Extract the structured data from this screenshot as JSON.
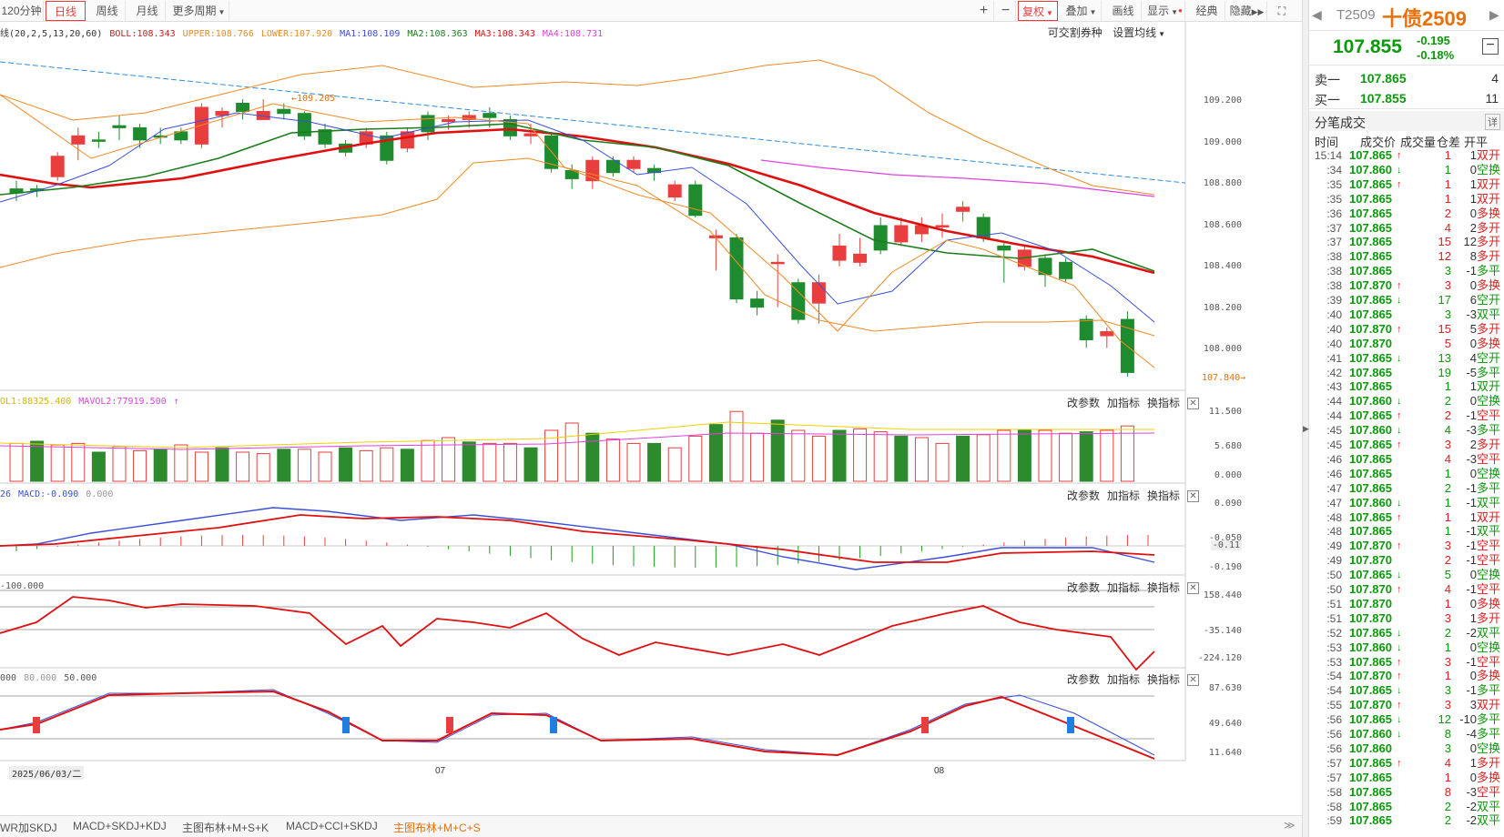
{
  "toolbar": {
    "periods": [
      "120分钟",
      "日线",
      "周线",
      "月线",
      "更多周期"
    ],
    "active_period": "日线",
    "right_buttons": [
      "+",
      "−",
      "复权",
      "叠加",
      "画线",
      "显示",
      "经典",
      "隐藏"
    ],
    "active_right": "复权"
  },
  "main_legend": {
    "prefix": "线(20,2,5,13,20,60)",
    "boll": "BOLL:108.343",
    "upper": "UPPER:108.766",
    "lower": "LOWER:107.920",
    "ma1": "MA1:108.109",
    "ma2": "MA2:108.363",
    "ma3": "MA3:108.343",
    "ma4": "MA4:108.731",
    "tool1": "可交割券种",
    "tool2": "设置均线"
  },
  "main_axis": [
    "109.200",
    "109.000",
    "108.800",
    "108.600",
    "108.400",
    "108.200",
    "108.000"
  ],
  "annotations": {
    "high": "109.205",
    "low": "107.840"
  },
  "vol_legend": {
    "v1": "OL1:88325.400",
    "v2": "MAVOL2:77919.500"
  },
  "vol_axis": [
    "11.500",
    "5.680",
    "0.000"
  ],
  "macd_legend": {
    "v1": "26",
    "v2": "MACD:-0.090",
    "v3": "0.000"
  },
  "macd_axis": [
    "0.090",
    "-0.050",
    "-0.11",
    "-0.190"
  ],
  "cci_legend": {
    "v1": "-100.000"
  },
  "cci_axis": [
    "158.440",
    "-35.140",
    "-224.120"
  ],
  "kdj_legend": {
    "v1": "000",
    "v2": "80.000",
    "v3": "50.000"
  },
  "kdj_axis": [
    "87.630",
    "49.640",
    "11.640"
  ],
  "panel_tools": {
    "a": "改参数",
    "b": "加指标",
    "c": "换指标",
    "close": "✕"
  },
  "dates": {
    "d1": "2025/06/03/二",
    "d2": "07",
    "d3": "08"
  },
  "bottom_tabs": [
    "WR加SKDJ",
    "MACD+SKDJ+KDJ",
    "主图布林+M+S+K",
    "MACD+CCI+SKDJ",
    "主图布林+M+C+S"
  ],
  "active_bottom": "主图布林+M+C+S",
  "quote": {
    "code": "T2509",
    "name": "十债2509",
    "price": "107.855",
    "change": "-0.195",
    "pct": "-0.18%",
    "sell_label": "卖一",
    "sell_price": "107.865",
    "sell_vol": "4",
    "buy_label": "买一",
    "buy_price": "107.855",
    "buy_vol": "11",
    "ticks_title": "分笔成交",
    "detail_icon": "详",
    "headers": [
      "时间",
      "成交价",
      "成交量",
      "仓差",
      "开平"
    ]
  },
  "ticks": [
    [
      "15:14",
      "107.865",
      "up",
      "1",
      "1",
      "双开",
      "r"
    ],
    [
      ":34",
      "107.860",
      "down",
      "1",
      "0",
      "空换",
      "g"
    ],
    [
      ":35",
      "107.865",
      "up",
      "1",
      "1",
      "双开",
      "r"
    ],
    [
      ":35",
      "107.865",
      "",
      "1",
      "1",
      "双开",
      "r"
    ],
    [
      ":36",
      "107.865",
      "",
      "2",
      "0",
      "多换",
      "r"
    ],
    [
      ":37",
      "107.865",
      "",
      "4",
      "2",
      "多开",
      "r"
    ],
    [
      ":37",
      "107.865",
      "",
      "15",
      "12",
      "多开",
      "r"
    ],
    [
      ":38",
      "107.865",
      "",
      "12",
      "8",
      "多开",
      "r"
    ],
    [
      ":38",
      "107.865",
      "",
      "3",
      "-1",
      "多平",
      "g"
    ],
    [
      ":38",
      "107.870",
      "up",
      "3",
      "0",
      "多换",
      "r"
    ],
    [
      ":39",
      "107.865",
      "down",
      "17",
      "6",
      "空开",
      "g"
    ],
    [
      ":40",
      "107.865",
      "",
      "3",
      "-3",
      "双平",
      "g"
    ],
    [
      ":40",
      "107.870",
      "up",
      "15",
      "5",
      "多开",
      "r"
    ],
    [
      ":40",
      "107.870",
      "",
      "5",
      "0",
      "多换",
      "r"
    ],
    [
      ":41",
      "107.865",
      "down",
      "13",
      "4",
      "空开",
      "g"
    ],
    [
      ":42",
      "107.865",
      "",
      "19",
      "-5",
      "多平",
      "g"
    ],
    [
      ":43",
      "107.865",
      "",
      "1",
      "1",
      "双开",
      "g"
    ],
    [
      ":44",
      "107.860",
      "down",
      "2",
      "0",
      "空换",
      "g"
    ],
    [
      ":44",
      "107.865",
      "up",
      "2",
      "-1",
      "空平",
      "r"
    ],
    [
      ":45",
      "107.860",
      "down",
      "4",
      "-3",
      "多平",
      "g"
    ],
    [
      ":45",
      "107.865",
      "up",
      "3",
      "2",
      "多开",
      "r"
    ],
    [
      ":46",
      "107.865",
      "",
      "4",
      "-3",
      "空平",
      "r"
    ],
    [
      ":46",
      "107.865",
      "",
      "1",
      "0",
      "空换",
      "g"
    ],
    [
      ":47",
      "107.865",
      "",
      "2",
      "-1",
      "多平",
      "g"
    ],
    [
      ":47",
      "107.860",
      "down",
      "1",
      "-1",
      "双平",
      "g"
    ],
    [
      ":48",
      "107.865",
      "up",
      "1",
      "1",
      "双开",
      "r"
    ],
    [
      ":48",
      "107.865",
      "",
      "1",
      "-1",
      "双平",
      "g"
    ],
    [
      ":49",
      "107.870",
      "up",
      "3",
      "-1",
      "空平",
      "r"
    ],
    [
      ":49",
      "107.870",
      "",
      "2",
      "-1",
      "空平",
      "r"
    ],
    [
      ":50",
      "107.865",
      "down",
      "5",
      "0",
      "空换",
      "g"
    ],
    [
      ":50",
      "107.870",
      "up",
      "4",
      "-1",
      "空平",
      "r"
    ],
    [
      ":51",
      "107.870",
      "",
      "1",
      "0",
      "多换",
      "r"
    ],
    [
      ":51",
      "107.870",
      "",
      "3",
      "1",
      "多开",
      "r"
    ],
    [
      ":52",
      "107.865",
      "down",
      "2",
      "-2",
      "双平",
      "g"
    ],
    [
      ":53",
      "107.860",
      "down",
      "1",
      "0",
      "空换",
      "g"
    ],
    [
      ":53",
      "107.865",
      "up",
      "3",
      "-1",
      "空平",
      "r"
    ],
    [
      ":54",
      "107.870",
      "up",
      "1",
      "0",
      "多换",
      "r"
    ],
    [
      ":54",
      "107.865",
      "down",
      "3",
      "-1",
      "多平",
      "g"
    ],
    [
      ":55",
      "107.870",
      "up",
      "3",
      "3",
      "双开",
      "r"
    ],
    [
      ":56",
      "107.865",
      "down",
      "12",
      "-10",
      "多平",
      "g"
    ],
    [
      ":56",
      "107.860",
      "down",
      "8",
      "-4",
      "多平",
      "g"
    ],
    [
      ":56",
      "107.860",
      "",
      "3",
      "0",
      "空换",
      "g"
    ],
    [
      ":57",
      "107.865",
      "up",
      "4",
      "1",
      "多开",
      "r"
    ],
    [
      ":57",
      "107.865",
      "",
      "1",
      "0",
      "多换",
      "r"
    ],
    [
      ":58",
      "107.865",
      "",
      "8",
      "-3",
      "空平",
      "r"
    ],
    [
      ":58",
      "107.865",
      "",
      "2",
      "-2",
      "双平",
      "g"
    ],
    [
      ":59",
      "107.865",
      "",
      "2",
      "-2",
      "双平",
      "g"
    ]
  ],
  "colors": {
    "up": "#e83e3e",
    "down": "#1e8c2e",
    "ma1": "#3a4fd8",
    "ma2": "#1c7d1c",
    "ma3": "#e01010",
    "ma4": "#e040e0",
    "boll": "#f08a24"
  }
}
